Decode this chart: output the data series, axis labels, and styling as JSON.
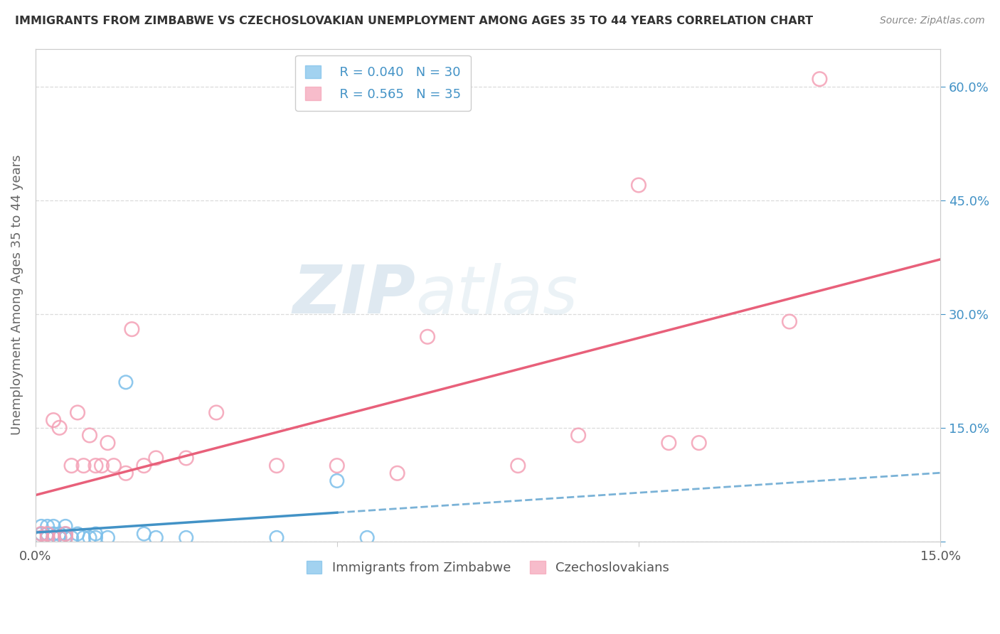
{
  "title": "IMMIGRANTS FROM ZIMBABWE VS CZECHOSLOVAKIAN UNEMPLOYMENT AMONG AGES 35 TO 44 YEARS CORRELATION CHART",
  "source": "Source: ZipAtlas.com",
  "ylabel": "Unemployment Among Ages 35 to 44 years",
  "right_yticks": [
    0.0,
    0.15,
    0.3,
    0.45,
    0.6
  ],
  "right_yticklabels": [
    "",
    "15.0%",
    "30.0%",
    "45.0%",
    "60.0%"
  ],
  "legend_blue_r": "R = 0.040",
  "legend_blue_n": "N = 30",
  "legend_pink_r": "R = 0.565",
  "legend_pink_n": "N = 35",
  "legend_blue_label": "Immigrants from Zimbabwe",
  "legend_pink_label": "Czechoslovakians",
  "blue_color": "#7bbfea",
  "pink_color": "#f4a0b5",
  "blue_line_color": "#4292c6",
  "pink_line_color": "#e8607a",
  "title_color": "#333333",
  "source_color": "#888888",
  "watermark_zip": "ZIP",
  "watermark_atlas": "atlas",
  "xlim": [
    0.0,
    0.15
  ],
  "ylim": [
    0.0,
    0.65
  ],
  "blue_scatter_x": [
    0.001,
    0.001,
    0.001,
    0.002,
    0.002,
    0.002,
    0.003,
    0.003,
    0.003,
    0.003,
    0.004,
    0.004,
    0.005,
    0.005,
    0.005,
    0.005,
    0.006,
    0.007,
    0.008,
    0.009,
    0.01,
    0.01,
    0.012,
    0.015,
    0.018,
    0.02,
    0.025,
    0.04,
    0.05,
    0.055
  ],
  "blue_scatter_y": [
    0.005,
    0.01,
    0.02,
    0.005,
    0.01,
    0.02,
    0.005,
    0.01,
    0.02,
    0.005,
    0.005,
    0.01,
    0.005,
    0.01,
    0.02,
    0.005,
    0.005,
    0.01,
    0.005,
    0.005,
    0.005,
    0.01,
    0.005,
    0.21,
    0.01,
    0.005,
    0.005,
    0.005,
    0.08,
    0.005
  ],
  "pink_scatter_x": [
    0.001,
    0.001,
    0.002,
    0.002,
    0.003,
    0.003,
    0.004,
    0.004,
    0.005,
    0.005,
    0.006,
    0.007,
    0.008,
    0.009,
    0.01,
    0.011,
    0.012,
    0.013,
    0.015,
    0.016,
    0.018,
    0.02,
    0.025,
    0.03,
    0.04,
    0.05,
    0.06,
    0.065,
    0.08,
    0.09,
    0.1,
    0.105,
    0.11,
    0.125,
    0.13
  ],
  "pink_scatter_y": [
    0.005,
    0.01,
    0.005,
    0.01,
    0.005,
    0.16,
    0.005,
    0.15,
    0.01,
    0.005,
    0.1,
    0.17,
    0.1,
    0.14,
    0.1,
    0.1,
    0.13,
    0.1,
    0.09,
    0.28,
    0.1,
    0.11,
    0.11,
    0.17,
    0.1,
    0.1,
    0.09,
    0.27,
    0.1,
    0.14,
    0.47,
    0.13,
    0.13,
    0.29,
    0.61
  ],
  "blue_line_solid_end": 0.05,
  "background_color": "#ffffff",
  "grid_color": "#cccccc",
  "grid_alpha": 0.7
}
